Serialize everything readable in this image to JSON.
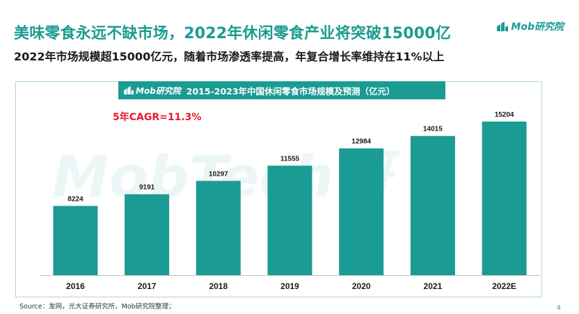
{
  "header": {
    "title": "美味零食永远不缺市场，2022年休闲零食产业将突破15000亿",
    "subtitle": "2022年市场规模超15000亿元，随着市场渗透率提高，年复合增长率维持在11%以上",
    "brand": "Mob研究院"
  },
  "panel": {
    "brand": "Mob研究院",
    "title": "2015-2023年中国休闲零食市场规模及预测（亿元）",
    "cagr": "5年CAGR=11.3%"
  },
  "watermark": "MobTech研",
  "footer": {
    "source": "Source：发网，光大证券研究所，Mob研究院整理；",
    "page": "4"
  },
  "colors": {
    "accent": "#1a9b93",
    "bar": "#1a9b93",
    "highlight": "#e8192c"
  },
  "chart_data": {
    "type": "bar",
    "title": "2015-2023年中国休闲零食市场规模及预测（亿元）",
    "categories": [
      "2016",
      "2017",
      "2018",
      "2019",
      "2020",
      "2021",
      "2022E"
    ],
    "values": [
      8224,
      9191,
      10297,
      11555,
      12984,
      14015,
      15204
    ],
    "data_labels": [
      "8224",
      "9191",
      "10297",
      "11555",
      "12984",
      "14015",
      "15204"
    ],
    "ylim": [
      2500,
      15204
    ],
    "grid": false,
    "legend": "none"
  }
}
